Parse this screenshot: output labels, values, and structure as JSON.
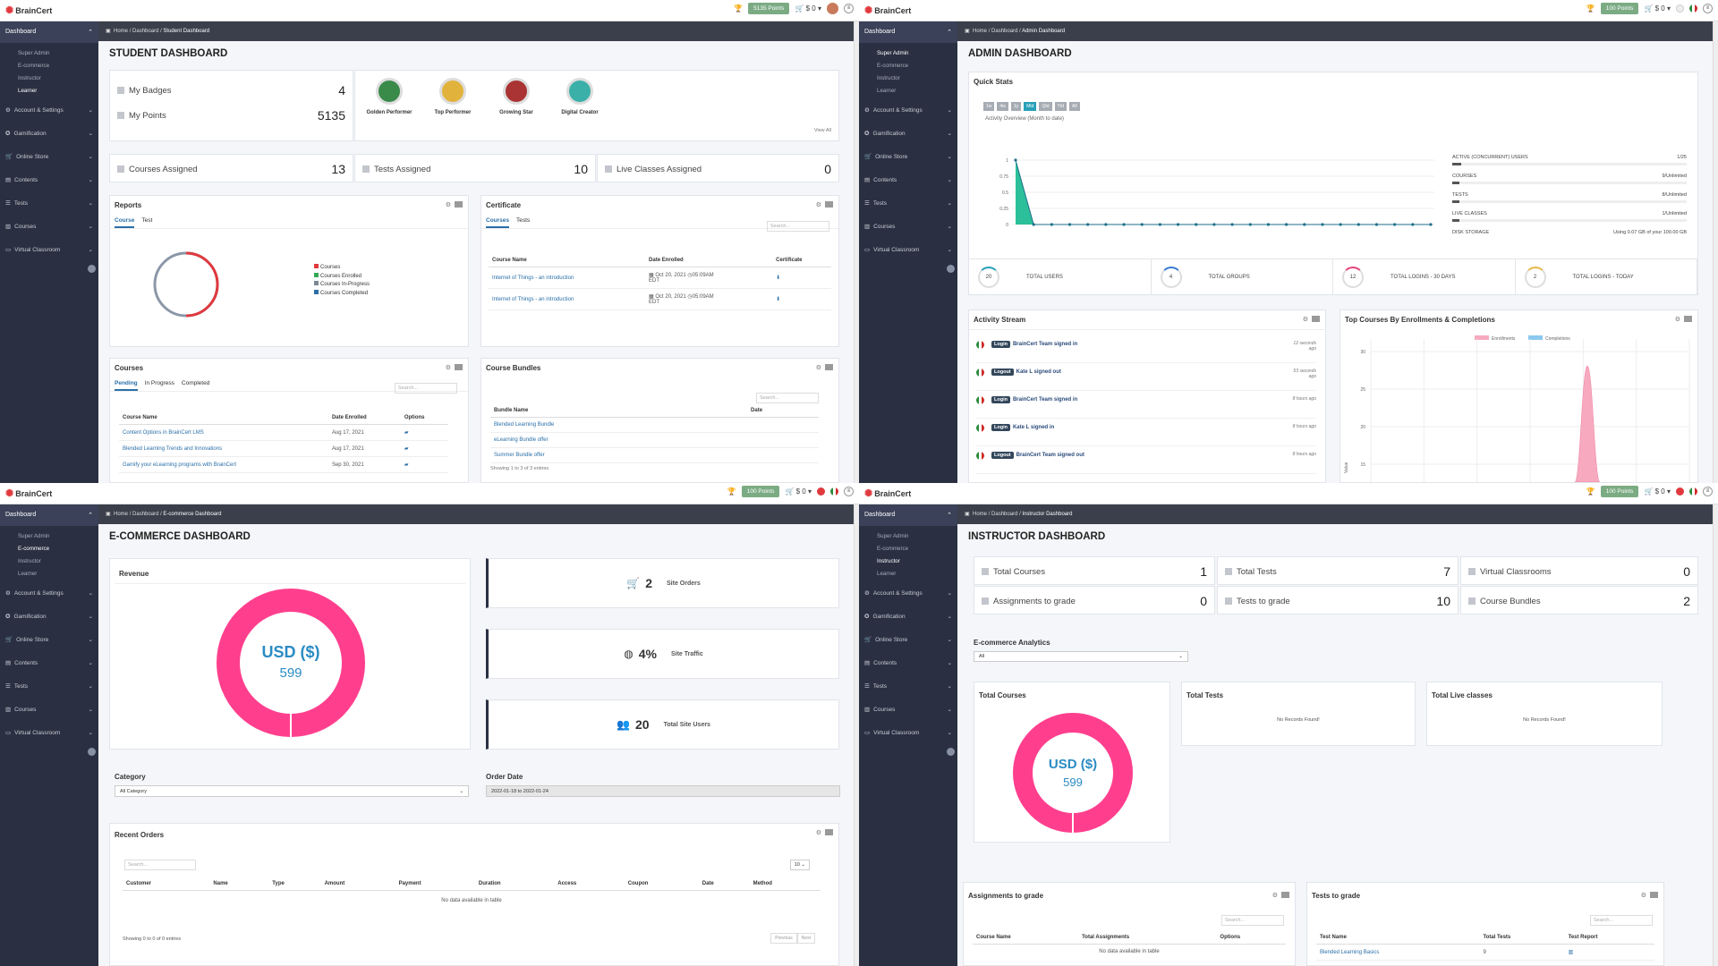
{
  "brand": "BrainCert",
  "sidebar": {
    "dashboard": "Dashboard",
    "sub": [
      "Super Admin",
      "E-commerce",
      "Instructor",
      "Learner"
    ],
    "items": [
      {
        "label": "Account & Settings",
        "icon": "gear-icon"
      },
      {
        "label": "Gamification",
        "icon": "trophy-icon"
      },
      {
        "label": "Online Store",
        "icon": "cart-icon"
      },
      {
        "label": "Contents",
        "icon": "folder-icon"
      },
      {
        "label": "Tests",
        "icon": "list-icon"
      },
      {
        "label": "Courses",
        "icon": "book-icon"
      },
      {
        "label": "Virtual Classroom",
        "icon": "monitor-icon"
      }
    ]
  },
  "crumb": {
    "home": "Home",
    "dashboard": "Dashboard"
  },
  "student": {
    "points_label": "5135 Points",
    "cart": "$ 0",
    "crumb": "Student Dashboard",
    "title": "STUDENT DASHBOARD",
    "my_badges": "My Badges",
    "badges_count": "4",
    "my_points": "My Points",
    "points_count": "5135",
    "badges": [
      "Golden Performer",
      "Top Performer",
      "Growing Star",
      "Digital Creator"
    ],
    "view_all": "View All",
    "courses_assigned": "Courses Assigned",
    "courses_assigned_v": "13",
    "tests_assigned": "Tests Assigned",
    "tests_assigned_v": "10",
    "live_assigned": "Live Classes Assigned",
    "live_assigned_v": "0",
    "reports": "Reports",
    "tab_course": "Course",
    "tab_test": "Test",
    "legend": [
      "Courses",
      "Courses Enrolled",
      "Courses In-Progress",
      "Courses Completed"
    ],
    "certificate": "Certificate",
    "cert_tabs": [
      "Courses",
      "Tests"
    ],
    "search": "Search...",
    "cert_cols": [
      "Course Name",
      "Date Enrolled",
      "Certificate"
    ],
    "cert_rows": [
      {
        "name": "Internet of Things - an introduction",
        "date": "Oct 20, 2021",
        "time": "05:09AM",
        "tz": "EDT"
      },
      {
        "name": "Internet of Things - an introduction",
        "date": "Oct 20, 2021",
        "time": "05:09AM",
        "tz": "EDT"
      }
    ],
    "courses": "Courses",
    "course_tabs": [
      "Pending",
      "In Progress",
      "Completed"
    ],
    "course_cols": [
      "Course Name",
      "Date Enrolled",
      "Options"
    ],
    "course_rows": [
      {
        "name": "Content Options in BrainCert LMS",
        "date": "Aug 17, 2021"
      },
      {
        "name": "Blended Learning Trends and Innovations",
        "date": "Aug 17, 2021"
      },
      {
        "name": "Gamify your eLearning programs with BrainCert",
        "date": "Sep 30, 2021"
      }
    ],
    "bundles": "Course Bundles",
    "bundle_cols": [
      "Bundle Name",
      "Date"
    ],
    "bundle_rows": [
      "Blended Learning Bundle",
      "eLearning Bundle offer",
      "Summer Bundle offer"
    ],
    "bundle_foot": "Showing 1 to 3 of 3 entries"
  },
  "admin": {
    "points_label": "100 Points",
    "cart": "$ 0",
    "crumb": "Admin Dashboard",
    "title": "ADMIN DASHBOARD",
    "quick": "Quick Stats",
    "ranges": [
      "1w",
      "4w",
      "1y",
      "Mtd",
      "Qtd",
      "Ytd",
      "All"
    ],
    "chart_title": "Activity Overview (Month to date)",
    "y_ticks": [
      "1",
      "0.75",
      "0.5",
      "0.25",
      "0"
    ],
    "usage": [
      {
        "label": "ACTIVE (CONCURRENT) USERS",
        "value": "1/25",
        "frac": 0.04
      },
      {
        "label": "COURSES",
        "value": "9/Unlimited",
        "frac": 0.01
      },
      {
        "label": "TESTS",
        "value": "8/Unlimited",
        "frac": 0.01
      },
      {
        "label": "LIVE CLASSES",
        "value": "1/Unlimited",
        "frac": 0.01
      },
      {
        "label": "DISK STORAGE",
        "value": "Using 0.07 GB of your 100.00 GB",
        "frac": 0.0
      }
    ],
    "totals": [
      {
        "n": "20",
        "label": "TOTAL USERS",
        "color": "#28a0b8"
      },
      {
        "n": "4",
        "label": "TOTAL GROUPS",
        "color": "#3a7bd5"
      },
      {
        "n": "12",
        "label": "TOTAL LOGINS - 30 DAYS",
        "color": "#e8447a"
      },
      {
        "n": "2",
        "label": "TOTAL LOGINS - TODAY",
        "color": "#e6b84a"
      }
    ],
    "activity": "Activity Stream",
    "stream": [
      {
        "tag": "Login",
        "text": "BrainCert Team signed in",
        "time": "12 seconds ago"
      },
      {
        "tag": "Logout",
        "text": "Kate L signed out",
        "time": "53 seconds ago"
      },
      {
        "tag": "Login",
        "text": "BrainCert Team signed in",
        "time": "8 hours ago"
      },
      {
        "tag": "Login",
        "text": "Kate L signed in",
        "time": "8 hours ago"
      },
      {
        "tag": "Logout",
        "text": "BrainCert Team signed out",
        "time": "8 hours ago"
      }
    ],
    "top_courses": "Top Courses By Enrollments & Completions",
    "legend": [
      "Enrollments",
      "Completions"
    ],
    "top_y": [
      "30",
      "25",
      "20",
      "15"
    ],
    "ylabel": "Value"
  },
  "ecom": {
    "points_label": "100 Points",
    "cart": "$ 0",
    "crumb": "E-commerce Dashboard",
    "title": "E-COMMERCE DASHBOARD",
    "revenue": "Revenue",
    "currency": "USD ($)",
    "amount": "599",
    "kpis": [
      {
        "n": "2",
        "label": "Site Orders",
        "icon": "cart-icon"
      },
      {
        "n": "4%",
        "label": "Site Traffic",
        "icon": "traffic-icon"
      },
      {
        "n": "20",
        "label": "Total Site Users",
        "icon": "users-icon"
      }
    ],
    "category": "Category",
    "category_val": "All Category",
    "order_date": "Order Date",
    "order_date_val": "2022-01-18 to 2022-01-24",
    "recent": "Recent Orders",
    "search": "Search...",
    "page_size": "10",
    "cols": [
      "Customer",
      "Name",
      "Type",
      "Amount",
      "Payment",
      "Duration",
      "Access",
      "Coupon",
      "Date",
      "Method"
    ],
    "empty": "No data available in table",
    "showing": "Showing 0 to 0 of 0 entries",
    "prev": "Previous",
    "next": "Next"
  },
  "instructor": {
    "points_label": "100 Points",
    "cart": "$ 0",
    "crumb": "Instructor Dashboard",
    "title": "INSTRUCTOR DASHBOARD",
    "stats": [
      {
        "label": "Total Courses",
        "v": "1"
      },
      {
        "label": "Total Tests",
        "v": "7"
      },
      {
        "label": "Virtual Classrooms",
        "v": "0"
      },
      {
        "label": "Assignments to grade",
        "v": "0"
      },
      {
        "label": "Tests to grade",
        "v": "10"
      },
      {
        "label": "Course Bundles",
        "v": "2"
      }
    ],
    "analytics": "E-commerce Analytics",
    "analytics_val": "All",
    "total_courses": "Total Courses",
    "currency": "USD ($)",
    "amount": "599",
    "total_tests": "Total Tests",
    "total_live": "Total Live classes",
    "no_records": "No Records Found!",
    "assign": "Assignments to grade",
    "assign_cols": [
      "Course Name",
      "Total Assignments",
      "Options"
    ],
    "assign_empty": "No data available in table",
    "tests_grade": "Tests to grade",
    "tg_cols": [
      "Test Name",
      "Total Tests",
      "Test Report"
    ],
    "tg_rows": [
      {
        "name": "Blended Learning Basics",
        "n": "9"
      }
    ],
    "search": "Search..."
  }
}
